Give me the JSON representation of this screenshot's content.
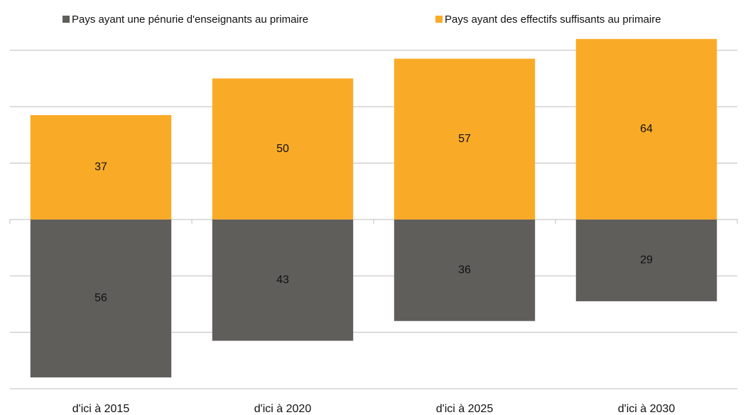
{
  "chart_data": {
    "type": "bar",
    "stacked": true,
    "categories": [
      "d'ici à 2015",
      "d'ici à 2020",
      "d'ici à 2025",
      "d'ici à 2030"
    ],
    "series": [
      {
        "name": "Pays ayant une pénurie d'enseignants au primaire",
        "color": "#5f5e5b",
        "values": [
          -56,
          -43,
          -36,
          -29
        ],
        "value_labels": [
          "56",
          "43",
          "36",
          "29"
        ]
      },
      {
        "name": "Pays ayant des effectifs suffisants au primaire",
        "color": "#f9ab28",
        "values": [
          37,
          50,
          57,
          64
        ]
      }
    ],
    "ylim": [
      -60,
      70
    ],
    "yticks": [
      -60,
      -40,
      -20,
      0,
      20,
      40,
      60
    ],
    "grid": true,
    "legend": "top"
  }
}
